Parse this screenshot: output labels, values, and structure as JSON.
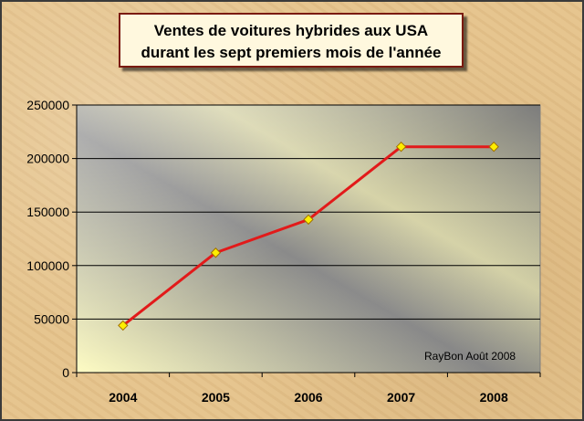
{
  "chart_data": {
    "type": "line",
    "title_lines": [
      "Ventes de voitures hybrides aux USA",
      "durant les sept premiers mois de l'année"
    ],
    "xlabel": "",
    "ylabel": "",
    "categories": [
      "2004",
      "2005",
      "2006",
      "2007",
      "2008"
    ],
    "series": [
      {
        "values": [
          44000,
          112000,
          143000,
          211000,
          211000
        ]
      }
    ],
    "ylim": [
      0,
      250000
    ],
    "yticks": [
      0,
      50000,
      100000,
      150000,
      200000,
      250000
    ],
    "grid": "horizontal",
    "legend": "none",
    "annotation": "RayBon Août 2008",
    "colors": {
      "line": "#e21a1a",
      "marker_fill": "#ffee00",
      "marker_stroke": "#a07000",
      "grid": "#000000"
    }
  }
}
